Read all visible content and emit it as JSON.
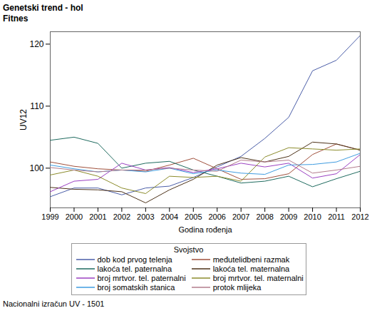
{
  "chart_data": {
    "type": "line",
    "title": "Genetski trend - hol",
    "subtitle": "Fitnes",
    "xlabel": "Godina rođenja",
    "ylabel": "UV12",
    "legend_title": "Svojstvo",
    "caption": "Nacionalni izračun UV - 1501",
    "x": [
      1999,
      2000,
      2001,
      2002,
      2003,
      2004,
      2005,
      2006,
      2007,
      2008,
      2009,
      2010,
      2011,
      2012
    ],
    "xlim": [
      1999,
      2012
    ],
    "xticks": [
      1999,
      2000,
      2001,
      2002,
      2003,
      2004,
      2005,
      2006,
      2007,
      2008,
      2009,
      2010,
      2011,
      2012
    ],
    "ylim": [
      93.6,
      122
    ],
    "yticks": [
      100,
      110,
      120
    ],
    "grid": false,
    "legend": "bottom",
    "series": [
      {
        "name": "dob kod prvog telenja",
        "color": "#4b5ea8",
        "values": [
          95.4,
          96.8,
          96.8,
          95.7,
          96.8,
          97.1,
          98.5,
          100.2,
          101.9,
          104.8,
          108.2,
          115.7,
          117.4,
          121.4
        ]
      },
      {
        "name": "međutelidbeni razmak",
        "color": "#a0503c",
        "values": [
          101.0,
          100.3,
          99.9,
          99.7,
          99.5,
          100.5,
          101.6,
          99.9,
          98.2,
          98.3,
          99.1,
          102.2,
          103.9,
          102.9
        ]
      },
      {
        "name": "lakoća tel. paternalna",
        "color": "#1f6b5f",
        "values": [
          104.5,
          105.0,
          104.0,
          100.0,
          100.8,
          101.1,
          99.7,
          98.7,
          97.6,
          97.9,
          98.7,
          97.0,
          98.3,
          99.5
        ]
      },
      {
        "name": "lakoća tel. maternalna",
        "color": "#4d3219",
        "values": [
          96.9,
          96.6,
          96.5,
          96.2,
          94.4,
          96.5,
          98.2,
          100.5,
          101.7,
          101.0,
          101.9,
          104.2,
          103.9,
          102.9
        ]
      },
      {
        "name": "broj mrtvor. tel. paternalni",
        "color": "#9b40c2",
        "values": [
          96.2,
          97.9,
          98.2,
          100.8,
          99.7,
          100.1,
          99.3,
          99.9,
          100.8,
          100.2,
          100.8,
          98.4,
          99.1,
          102.2
        ]
      },
      {
        "name": "broj mrtvor. tel. maternalni",
        "color": "#8c8c2c",
        "values": [
          98.9,
          99.7,
          98.7,
          96.8,
          95.9,
          98.7,
          98.5,
          98.7,
          97.9,
          101.8,
          103.3,
          103.1,
          102.9,
          103.1
        ]
      },
      {
        "name": "broj somatskih stanica",
        "color": "#3f9ce0",
        "values": [
          100.5,
          99.9,
          99.4,
          99.7,
          99.4,
          100.0,
          99.1,
          99.7,
          99.2,
          99.0,
          100.5,
          100.6,
          101.0,
          102.4
        ]
      },
      {
        "name": "protok mlijeka",
        "color": "#b27c8c",
        "values": [
          100.1,
          99.7,
          99.4,
          99.7,
          99.7,
          100.0,
          99.7,
          99.5,
          101.3,
          101.0,
          101.3,
          99.2,
          99.7,
          100.3
        ]
      }
    ]
  }
}
